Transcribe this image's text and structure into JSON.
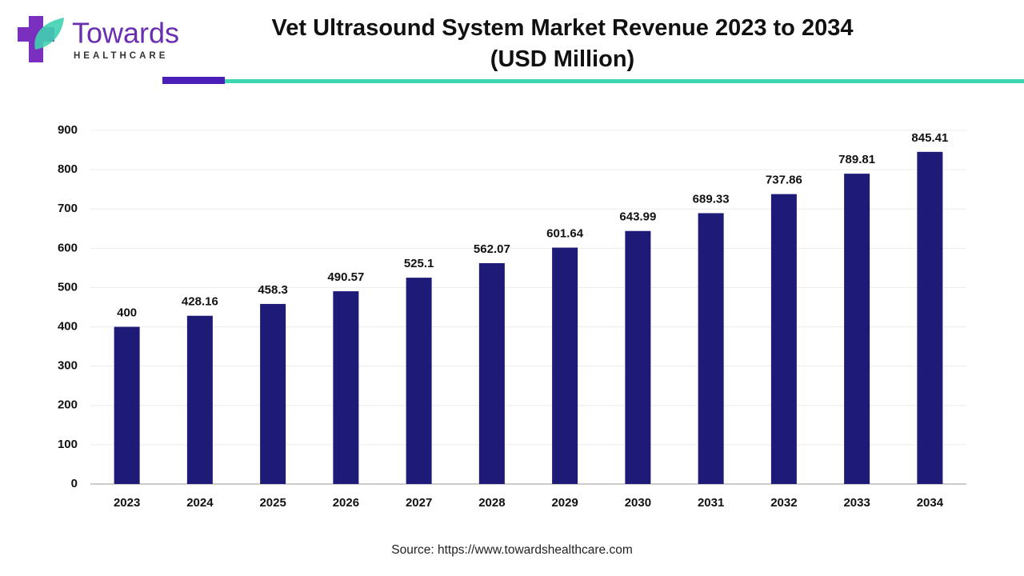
{
  "logo": {
    "name": "Towards",
    "tagline": "HEALTHCARE"
  },
  "chart_data": {
    "type": "bar",
    "title": "Vet Ultrasound System Market Revenue 2023 to 2034\n(USD Million)",
    "categories": [
      "2023",
      "2024",
      "2025",
      "2026",
      "2027",
      "2028",
      "2029",
      "2030",
      "2031",
      "2032",
      "2033",
      "2034"
    ],
    "values": [
      400,
      428.16,
      458.3,
      490.57,
      525.1,
      562.07,
      601.64,
      643.99,
      689.33,
      737.86,
      789.81,
      845.41
    ],
    "color": "#1e1b78",
    "ylim": [
      0,
      900
    ],
    "yticks": [
      0,
      100,
      200,
      300,
      400,
      500,
      600,
      700,
      800,
      900
    ],
    "grid": true
  },
  "source": "Source: https://www.towardshealthcare.com"
}
